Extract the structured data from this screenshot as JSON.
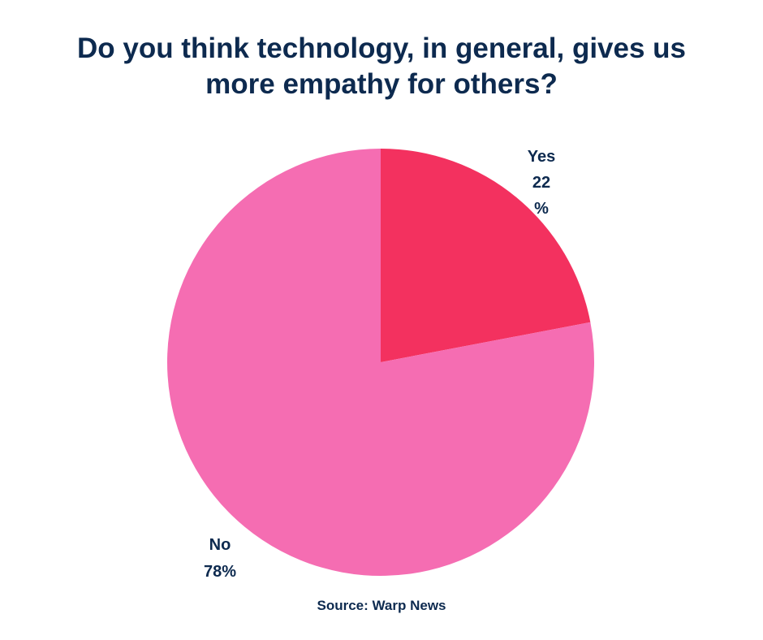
{
  "chart_data": {
    "type": "pie",
    "title_lines": [
      "Do you think technology, in general, gives us",
      "more empathy for others?"
    ],
    "slices": [
      {
        "label": "Yes",
        "value": 22,
        "value_text": [
          "22",
          "%"
        ],
        "color": "#f3315f"
      },
      {
        "label": "No",
        "value": 78,
        "value_text": [
          "78%"
        ],
        "color": "#f56db2"
      }
    ],
    "start_angle_deg": 0,
    "direction": "clockwise",
    "legend": "none"
  },
  "footer": {
    "source": "Source:  Warp News"
  }
}
